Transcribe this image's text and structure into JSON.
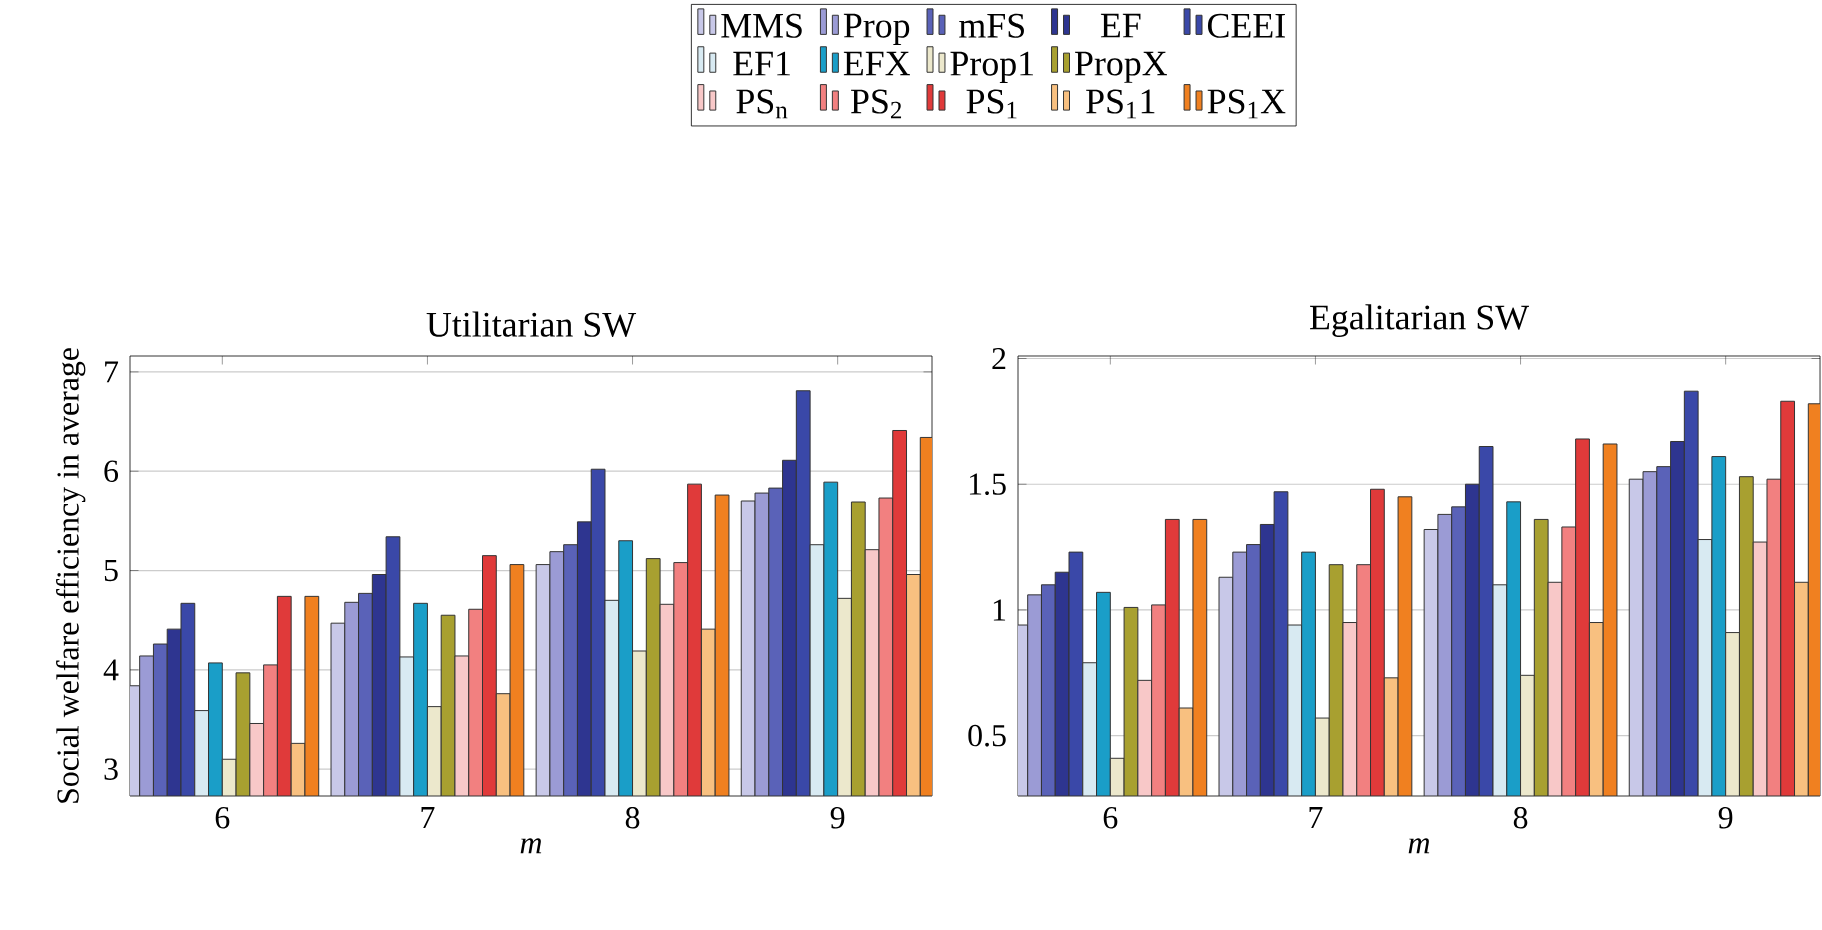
{
  "chart_data": [
    {
      "type": "bar",
      "title": "Utilitarian SW",
      "xlabel": "*m*",
      "ylabel": "Social welfare efficiency in average",
      "categories": [
        "6",
        "7",
        "8",
        "9"
      ],
      "ylim": [
        2.73,
        7.16
      ],
      "yticks": [
        3,
        4,
        5,
        6,
        7
      ],
      "grid": "y",
      "legend": "top",
      "series": [
        {
          "name": "MMS",
          "color": "#c8c8e8",
          "values": [
            3.84,
            4.47,
            5.06,
            5.7
          ]
        },
        {
          "name": "Prop",
          "color": "#9b9bd5",
          "values": [
            4.14,
            4.68,
            5.19,
            5.78
          ]
        },
        {
          "name": "mFS",
          "color": "#5a62b8",
          "values": [
            4.26,
            4.77,
            5.26,
            5.83
          ]
        },
        {
          "name": "EF",
          "color": "#2e3590",
          "values": [
            4.41,
            4.96,
            5.49,
            6.11
          ]
        },
        {
          "name": "CEEI",
          "color": "#3a48a8",
          "values": [
            4.67,
            5.34,
            6.02,
            6.81
          ]
        },
        {
          "name": "EF1",
          "color": "#d8eaf2",
          "values": [
            3.59,
            4.13,
            4.7,
            5.26
          ]
        },
        {
          "name": "EFX",
          "color": "#1a9ec8",
          "values": [
            4.07,
            4.67,
            5.3,
            5.89
          ]
        },
        {
          "name": "Prop1",
          "color": "#ece8cc",
          "values": [
            3.1,
            3.63,
            4.19,
            4.72
          ]
        },
        {
          "name": "PropX",
          "color": "#a8a030",
          "values": [
            3.97,
            4.55,
            5.12,
            5.69
          ]
        },
        {
          "name": "PS$_{n}$",
          "color": "#f8c8c8",
          "values": [
            3.46,
            4.14,
            4.66,
            5.21
          ]
        },
        {
          "name": "PS$_{2}$",
          "color": "#f28080",
          "values": [
            4.05,
            4.61,
            5.08,
            5.73
          ]
        },
        {
          "name": "PS$_{1}$",
          "color": "#e03a3a",
          "values": [
            4.74,
            5.15,
            5.87,
            6.41
          ]
        },
        {
          "name": "PS$_{1}$1",
          "color": "#f8c080",
          "values": [
            3.26,
            3.76,
            4.41,
            4.96
          ]
        },
        {
          "name": "PS$_{1}$X",
          "color": "#f08020",
          "values": [
            4.74,
            5.06,
            5.76,
            6.34
          ]
        }
      ]
    },
    {
      "type": "bar",
      "title": "Egalitarian SW",
      "xlabel": "*m*",
      "categories": [
        "6",
        "7",
        "8",
        "9"
      ],
      "ylim": [
        0.26,
        2.01
      ],
      "yticks": [
        0.5,
        1,
        1.5,
        2
      ],
      "grid": "y",
      "series": [
        {
          "color": "#c8c8e8",
          "values": [
            0.94,
            1.13,
            1.32,
            1.52
          ]
        },
        {
          "color": "#9b9bd5",
          "values": [
            1.06,
            1.23,
            1.38,
            1.55
          ]
        },
        {
          "color": "#5a62b8",
          "values": [
            1.1,
            1.26,
            1.41,
            1.57
          ]
        },
        {
          "color": "#2e3590",
          "values": [
            1.15,
            1.34,
            1.5,
            1.67
          ]
        },
        {
          "color": "#3a48a8",
          "values": [
            1.23,
            1.47,
            1.65,
            1.87
          ]
        },
        {
          "color": "#d8eaf2",
          "values": [
            0.79,
            0.94,
            1.1,
            1.28
          ]
        },
        {
          "color": "#1a9ec8",
          "values": [
            1.07,
            1.23,
            1.43,
            1.61
          ]
        },
        {
          "color": "#ece8cc",
          "values": [
            0.41,
            0.57,
            0.74,
            0.91
          ]
        },
        {
          "color": "#a8a030",
          "values": [
            1.01,
            1.18,
            1.36,
            1.53
          ]
        },
        {
          "color": "#f8c8c8",
          "values": [
            0.72,
            0.95,
            1.11,
            1.27
          ]
        },
        {
          "color": "#f28080",
          "values": [
            1.02,
            1.18,
            1.33,
            1.52
          ]
        },
        {
          "color": "#e03a3a",
          "values": [
            1.36,
            1.48,
            1.68,
            1.83
          ]
        },
        {
          "color": "#f8c080",
          "values": [
            0.61,
            0.73,
            0.95,
            1.11
          ]
        },
        {
          "color": "#f08020",
          "values": [
            1.36,
            1.45,
            1.66,
            1.82
          ]
        }
      ]
    }
  ]
}
